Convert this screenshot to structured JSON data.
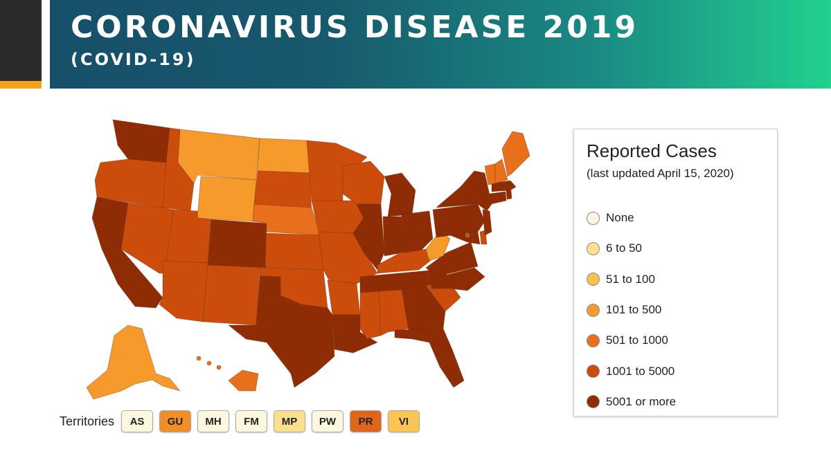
{
  "header": {
    "title": "CORONAVIRUS DISEASE 2019",
    "subtitle": "(COVID-19)"
  },
  "legend": {
    "title": "Reported Cases",
    "subtitle": "(last updated April 15, 2020)",
    "items": [
      {
        "label": "None",
        "color": "#fbf5e1"
      },
      {
        "label": "6 to 50",
        "color": "#fde190"
      },
      {
        "label": "51 to 100",
        "color": "#fcc14c"
      },
      {
        "label": "101 to 500",
        "color": "#f59a2b"
      },
      {
        "label": "501 to 1000",
        "color": "#e86f1c"
      },
      {
        "label": "1001 to 5000",
        "color": "#cc4c0c"
      },
      {
        "label": "5001 or more",
        "color": "#8e2c05"
      }
    ]
  },
  "territories": {
    "label": "Territories",
    "items": [
      {
        "code": "AS",
        "color": "#fcf7df"
      },
      {
        "code": "GU",
        "color": "#f08e2a"
      },
      {
        "code": "MH",
        "color": "#fcf7df"
      },
      {
        "code": "FM",
        "color": "#fcf7df"
      },
      {
        "code": "MP",
        "color": "#fde08e"
      },
      {
        "code": "PW",
        "color": "#fcf7df"
      },
      {
        "code": "PR",
        "color": "#e0651c"
      },
      {
        "code": "VI",
        "color": "#fcc453"
      }
    ]
  },
  "colors": {
    "none": "#fbf5e1",
    "c6_50": "#fde190",
    "c51_100": "#fcc14c",
    "c101_500": "#f59a2b",
    "c501_1000": "#e86f1c",
    "c1001_5000": "#cc4c0c",
    "c5001_plus": "#8e2c05",
    "banner_start": "#174f69",
    "banner_end": "#22d08f",
    "accent": "#f6a21b"
  }
}
